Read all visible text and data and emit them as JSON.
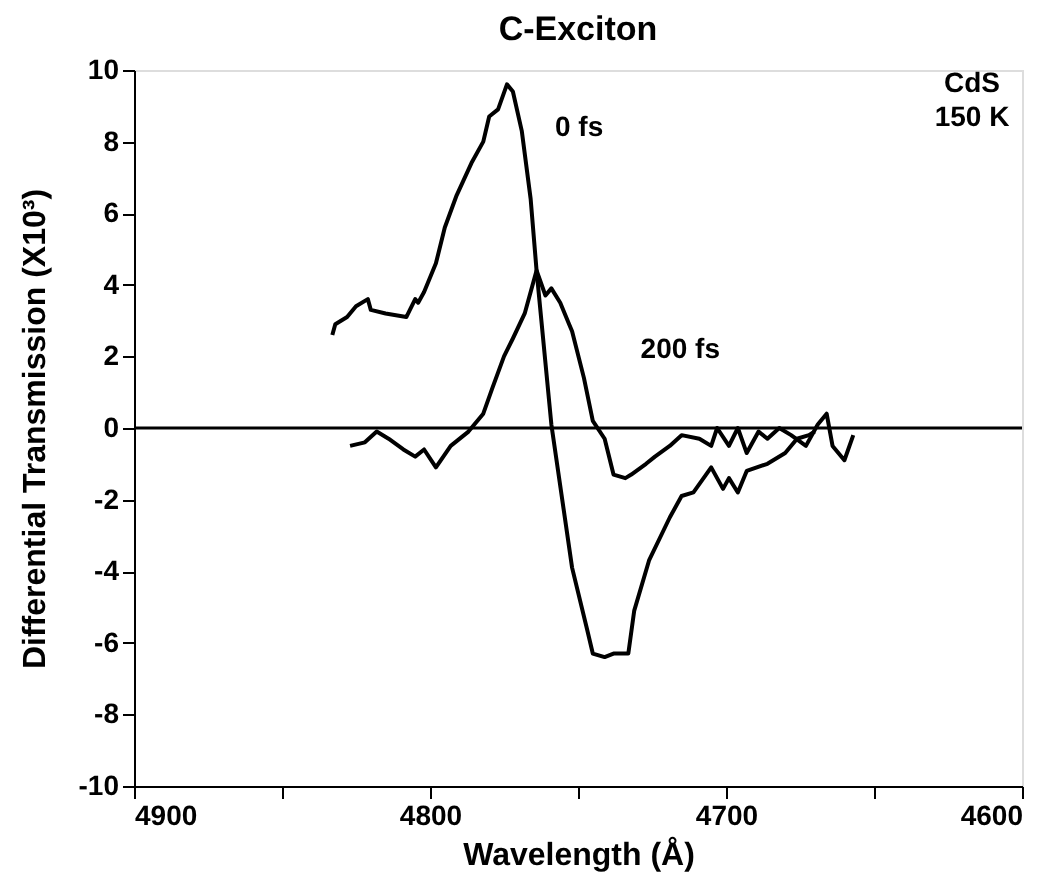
{
  "chart_data": {
    "type": "line",
    "title": "C-Exciton",
    "xlabel": "Wavelength (Å)",
    "ylabel": "Differential Transmission (X10³)",
    "xlim": [
      4900,
      4600
    ],
    "ylim": [
      -10,
      10
    ],
    "xticks": [
      4900,
      {
        "value": 4850,
        "label": null
      },
      4800,
      {
        "value": 4750,
        "label": null
      },
      4700,
      {
        "value": 4650,
        "label": null
      },
      4600
    ],
    "yticks": [
      -10,
      -8,
      -6,
      -4,
      -2,
      0,
      2,
      4,
      6,
      8,
      10
    ],
    "grid": false,
    "marker": "none",
    "line_style": "solid",
    "ref_lines": [
      {
        "axis": "y",
        "value": 0,
        "color": "#000000"
      }
    ],
    "annotations": [
      "CdS\n150 K"
    ],
    "series": [
      {
        "name": "0 fs",
        "color": "#000000",
        "x": [
          4833,
          4832,
          4828,
          4825,
          4821,
          4820,
          4815,
          4808,
          4805,
          4804,
          4802,
          4798,
          4795,
          4791,
          4786,
          4782,
          4780,
          4777,
          4774,
          4772,
          4769,
          4766,
          4764,
          4759,
          4752,
          4747,
          4745,
          4741,
          4738,
          4733,
          4731,
          4726,
          4719,
          4715,
          4711,
          4705,
          4701,
          4699,
          4696,
          4693,
          4686,
          4680,
          4676,
          4672,
          4670
        ],
        "values": [
          2.6,
          2.9,
          3.1,
          3.4,
          3.6,
          3.3,
          3.2,
          3.1,
          3.6,
          3.5,
          3.8,
          4.6,
          5.6,
          6.5,
          7.4,
          8.0,
          8.7,
          8.9,
          9.6,
          9.4,
          8.3,
          6.4,
          4.4,
          0.1,
          -3.9,
          -5.6,
          -6.3,
          -6.4,
          -6.3,
          -6.3,
          -5.1,
          -3.7,
          -2.5,
          -1.9,
          -1.8,
          -1.1,
          -1.7,
          -1.4,
          -1.8,
          -1.2,
          -1.0,
          -0.7,
          -0.3,
          -0.2,
          -0.1
        ]
      },
      {
        "name": "200 fs",
        "color": "#000000",
        "x": [
          4827,
          4822,
          4818,
          4814,
          4809,
          4805,
          4802,
          4798,
          4793,
          4787,
          4782,
          4779,
          4775,
          4772,
          4768,
          4764,
          4761,
          4759,
          4756,
          4753,
          4752,
          4748,
          4745,
          4741,
          4738,
          4734,
          4732,
          4727,
          4724,
          4719,
          4715,
          4709,
          4705,
          4703,
          4699,
          4696,
          4693,
          4689,
          4686,
          4682,
          4678,
          4673,
          4669,
          4666,
          4664,
          4660,
          4657
        ],
        "values": [
          -0.5,
          -0.4,
          -0.1,
          -0.3,
          -0.6,
          -0.8,
          -0.6,
          -1.1,
          -0.5,
          -0.1,
          0.4,
          1.1,
          2.0,
          2.5,
          3.2,
          4.4,
          3.7,
          3.9,
          3.5,
          2.9,
          2.7,
          1.4,
          0.2,
          -0.3,
          -1.3,
          -1.4,
          -1.3,
          -1.0,
          -0.8,
          -0.5,
          -0.2,
          -0.3,
          -0.5,
          0.0,
          -0.5,
          0.0,
          -0.7,
          -0.1,
          -0.3,
          0.0,
          -0.2,
          -0.5,
          0.1,
          0.4,
          -0.5,
          -0.9,
          -0.2
        ]
      }
    ]
  }
}
